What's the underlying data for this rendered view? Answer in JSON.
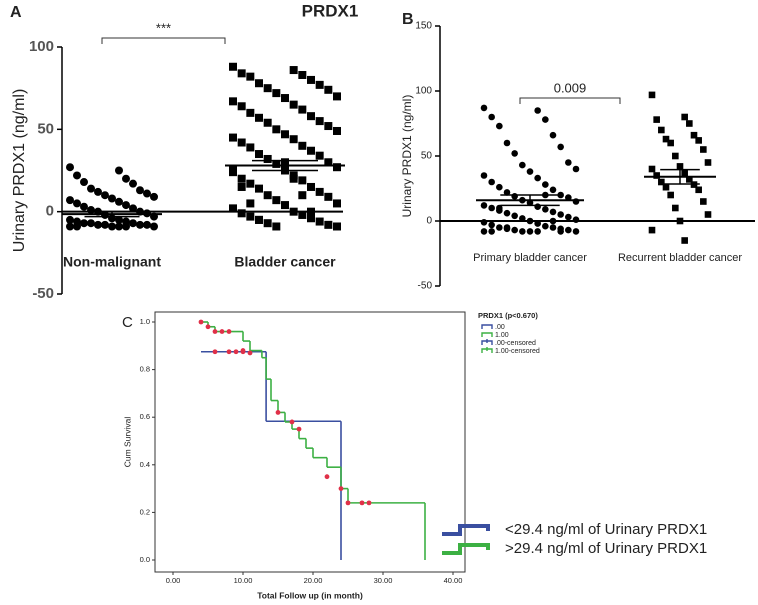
{
  "chart_data": [
    {
      "type": "dotplot",
      "panel": "A",
      "title": "PRDX1",
      "y_label": "Urinary PRDX1 (ng/ml)",
      "categories": [
        "Non-malignant",
        "Bladder cancer"
      ],
      "markers": [
        "circle",
        "square"
      ],
      "color": "#000000",
      "values": [
        [
          27,
          25,
          22,
          20,
          18,
          17,
          14,
          13,
          12,
          11,
          10,
          9,
          8,
          7,
          6,
          5,
          4,
          3,
          2,
          1,
          0,
          0,
          -1,
          -2,
          -3,
          -4,
          -5,
          -5,
          -6,
          -6,
          -7,
          -7,
          -7,
          -8,
          -8,
          -8,
          -8,
          -9,
          -9,
          -9,
          -9,
          -9,
          -9
        ],
        [
          88,
          86,
          84,
          83,
          82,
          80,
          78,
          77,
          75,
          74,
          72,
          70,
          69,
          67,
          65,
          64,
          62,
          60,
          58,
          57,
          55,
          54,
          52,
          50,
          49,
          47,
          45,
          44,
          42,
          40,
          39,
          37,
          35,
          34,
          32,
          30,
          29,
          27,
          25,
          24,
          22,
          20,
          19,
          17,
          15,
          14,
          12,
          10,
          9,
          7,
          5,
          4,
          2,
          0,
          -1,
          -2,
          -3,
          -4,
          -5,
          -6,
          -7,
          -8,
          -9,
          -9,
          30,
          25,
          20,
          15,
          10,
          5,
          0,
          -5
        ]
      ],
      "means": [
        -1.5,
        28
      ],
      "sem": [
        1.5,
        3
      ],
      "annotation": "***",
      "ylim": [
        -50,
        100
      ],
      "yticks": [
        -50,
        0,
        50,
        100
      ]
    },
    {
      "type": "dotplot",
      "panel": "B",
      "y_label": "Urinary PRDX1 (ng/ml)",
      "categories": [
        "Primary bladder cancer",
        "Recurrent bladder cancer"
      ],
      "markers": [
        "circle",
        "square"
      ],
      "color": "#000000",
      "values": [
        [
          87,
          85,
          80,
          78,
          73,
          66,
          60,
          57,
          52,
          45,
          43,
          40,
          38,
          35,
          33,
          30,
          28,
          26,
          24,
          22,
          20,
          19,
          18,
          16,
          15,
          14,
          12,
          11,
          10,
          9,
          8,
          7,
          6,
          5,
          4,
          3,
          2,
          1,
          0,
          -1,
          -2,
          -3,
          -4,
          -5,
          -5,
          -6,
          -6,
          -7,
          -7,
          -8,
          -8,
          -8,
          -8,
          -8,
          -8,
          20,
          10,
          0,
          -5,
          -8
        ],
        [
          97,
          80,
          78,
          75,
          70,
          66,
          63,
          62,
          60,
          55,
          50,
          45,
          42,
          40,
          37,
          35,
          32,
          30,
          28,
          26,
          24,
          20,
          15,
          10,
          5,
          0,
          -7,
          -15
        ]
      ],
      "means": [
        16,
        34
      ],
      "sem": [
        4,
        5.5
      ],
      "annotation": "0.009",
      "ylim": [
        -50,
        150
      ],
      "yticks": [
        -50,
        0,
        50,
        100,
        150
      ]
    },
    {
      "type": "survival",
      "panel": "C",
      "x_label": "Total Follow up (in month)",
      "y_label": "Cum Survival",
      "legend_title": "PRDX1 (p<0.670)",
      "legend": "top-right",
      "series": [
        {
          "name": ".00",
          "color": "#3a4fa0",
          "style": "step",
          "x": [
            4,
            13.3,
            24
          ],
          "values": [
            0.875,
            0.583,
            0
          ]
        },
        {
          "name": "1.00",
          "color": "#3cb043",
          "style": "step",
          "x": [
            4,
            5,
            6,
            10,
            11,
            12.7,
            13.3,
            14,
            15,
            16,
            17,
            18,
            19,
            20,
            22,
            24,
            25,
            36
          ],
          "values": [
            1.0,
            0.98,
            0.96,
            0.92,
            0.88,
            0.85,
            0.76,
            0.67,
            0.62,
            0.58,
            0.55,
            0.51,
            0.47,
            0.43,
            0.39,
            0.3,
            0.24,
            0
          ]
        },
        {
          "name": ".00-censored",
          "color": "#3a4fa0",
          "marker_color": "#e03048",
          "style": "censor",
          "x": [
            6,
            8,
            9,
            10
          ],
          "values": [
            0.875,
            0.875,
            0.875,
            0.875
          ]
        },
        {
          "name": "1.00-censored",
          "color": "#3cb043",
          "marker_color": "#e03048",
          "style": "censor",
          "x": [
            4,
            5,
            6,
            7,
            8,
            10,
            11,
            15,
            17,
            18,
            22,
            24,
            25,
            27,
            28
          ],
          "values": [
            1.0,
            0.98,
            0.96,
            0.96,
            0.96,
            0.88,
            0.87,
            0.62,
            0.58,
            0.55,
            0.35,
            0.3,
            0.24,
            0.24,
            0.24
          ]
        }
      ],
      "annotations": [
        "<29.4 ng/ml of Urinary PRDX1",
        ">29.4 ng/ml of Urinary PRDX1"
      ],
      "xlim": [
        0,
        40
      ],
      "ylim": [
        0,
        1
      ],
      "xticks": [
        {
          "value": 0,
          "label": "0.00"
        },
        {
          "value": 10,
          "label": "10.00"
        },
        {
          "value": 20,
          "label": "20.00"
        },
        {
          "value": 30,
          "label": "30.00"
        },
        {
          "value": 40,
          "label": "40.00"
        }
      ],
      "yticks": [
        {
          "value": 0,
          "label": "0.0"
        },
        {
          "value": 0.2,
          "label": "0.2"
        },
        {
          "value": 0.4,
          "label": "0.4"
        },
        {
          "value": 0.6,
          "label": "0.6"
        },
        {
          "value": 0.8,
          "label": "0.8"
        },
        {
          "value": 1,
          "label": "1.0"
        }
      ]
    }
  ]
}
